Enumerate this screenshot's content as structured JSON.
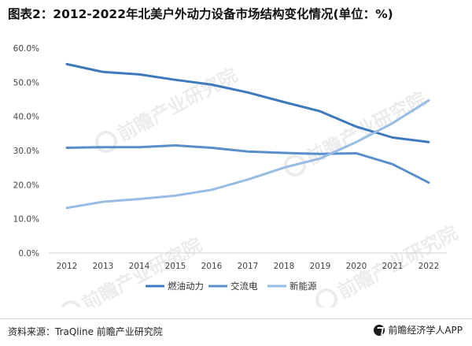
{
  "title": "图表2：2012-2022年北美户外动力设备市场结构变化情况(单位：%)",
  "footer": {
    "source": "资料来源：TraQline 前瞻产业研究院",
    "brand": "前瞻经济学人APP"
  },
  "watermark": "前瞻产业研究院",
  "chart_data": {
    "type": "line",
    "title": "图表2：2012-2022年北美户外动力设备市场结构变化情况(单位：%)",
    "x": [
      "2012",
      "2013",
      "2014",
      "2015",
      "2016",
      "2017",
      "2018",
      "2019",
      "2020",
      "2021",
      "2022"
    ],
    "ylim": [
      0,
      60
    ],
    "yticks": [
      "0.0%",
      "10.0%",
      "20.0%",
      "30.0%",
      "40.0%",
      "50.0%",
      "60.0%"
    ],
    "grid": false,
    "legend_position": "bottom",
    "series": [
      {
        "name": "燃油动力",
        "color": "#3d79bd",
        "values": [
          55.3,
          53.0,
          52.3,
          50.7,
          49.3,
          47.0,
          44.2,
          41.5,
          37.0,
          33.8,
          32.5
        ]
      },
      {
        "name": "交流电",
        "color": "#5a8fcb",
        "values": [
          30.8,
          31.0,
          31.0,
          31.5,
          30.8,
          29.7,
          29.3,
          29.0,
          29.2,
          26.0,
          20.6
        ]
      },
      {
        "name": "新能源",
        "color": "#97bde5",
        "values": [
          13.2,
          15.0,
          15.8,
          16.8,
          18.5,
          21.5,
          25.0,
          27.7,
          32.5,
          38.0,
          44.7
        ]
      }
    ]
  }
}
